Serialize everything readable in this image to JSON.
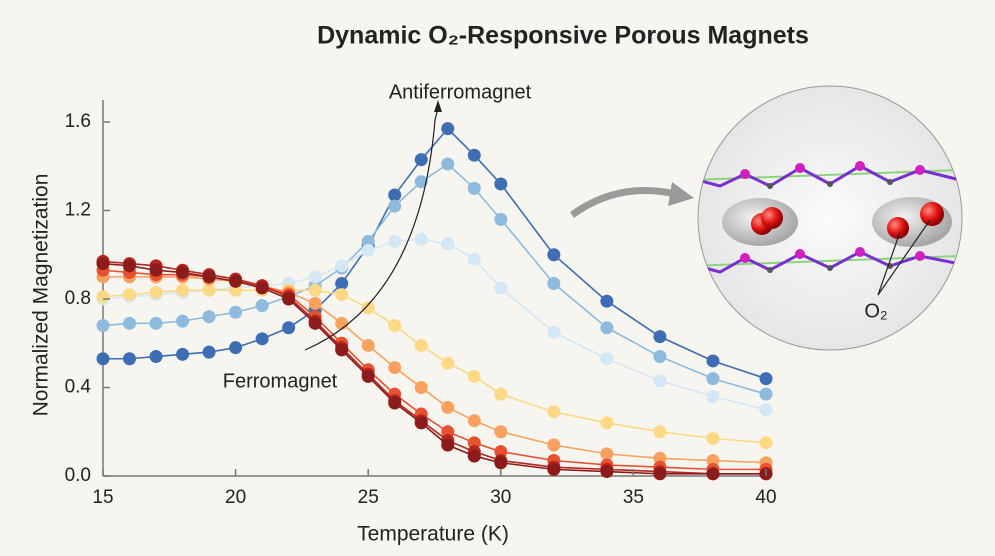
{
  "chart_data": {
    "type": "line",
    "title": "Dynamic O₂-Responsive Porous Magnets",
    "x_label": "Temperature (K)",
    "y_label": "Normalized Magnetization",
    "annotations": [
      "Antiferromagnet",
      "Ferromagnet"
    ],
    "inset_label": "O₂",
    "x": [
      15,
      16,
      17,
      18,
      19,
      20,
      21,
      22,
      23,
      24,
      25,
      26,
      27,
      28,
      29,
      30,
      32,
      34,
      36,
      38,
      40
    ],
    "series": [
      {
        "color": "#3e6db3",
        "values": [
          0.53,
          0.53,
          0.54,
          0.55,
          0.56,
          0.58,
          0.62,
          0.67,
          0.75,
          0.87,
          1.04,
          1.27,
          1.43,
          1.57,
          1.45,
          1.32,
          1.0,
          0.79,
          0.63,
          0.52,
          0.44
        ]
      },
      {
        "color": "#8dbadd",
        "values": [
          0.68,
          0.69,
          0.69,
          0.7,
          0.72,
          0.74,
          0.77,
          0.81,
          0.86,
          0.94,
          1.06,
          1.22,
          1.33,
          1.41,
          1.3,
          1.16,
          0.87,
          0.67,
          0.54,
          0.44,
          0.37
        ]
      },
      {
        "color": "#d4e7f4",
        "values": [
          0.8,
          0.81,
          0.82,
          0.83,
          0.84,
          0.85,
          0.86,
          0.87,
          0.9,
          0.95,
          1.02,
          1.06,
          1.07,
          1.05,
          0.98,
          0.85,
          0.65,
          0.53,
          0.43,
          0.36,
          0.3
        ]
      },
      {
        "color": "#fdd985",
        "values": [
          0.81,
          0.82,
          0.83,
          0.84,
          0.84,
          0.84,
          0.84,
          0.84,
          0.84,
          0.82,
          0.76,
          0.68,
          0.59,
          0.51,
          0.45,
          0.37,
          0.29,
          0.24,
          0.2,
          0.17,
          0.15
        ]
      },
      {
        "color": "#f9a15f",
        "values": [
          0.9,
          0.9,
          0.9,
          0.9,
          0.89,
          0.88,
          0.86,
          0.83,
          0.78,
          0.69,
          0.59,
          0.49,
          0.4,
          0.31,
          0.25,
          0.2,
          0.14,
          0.1,
          0.08,
          0.07,
          0.06
        ]
      },
      {
        "color": "#e8512f",
        "values": [
          0.93,
          0.92,
          0.91,
          0.91,
          0.9,
          0.88,
          0.86,
          0.82,
          0.72,
          0.6,
          0.48,
          0.37,
          0.28,
          0.2,
          0.15,
          0.11,
          0.07,
          0.05,
          0.04,
          0.03,
          0.03
        ]
      },
      {
        "color": "#b7251f",
        "values": [
          0.97,
          0.96,
          0.95,
          0.93,
          0.91,
          0.89,
          0.86,
          0.81,
          0.7,
          0.58,
          0.46,
          0.34,
          0.25,
          0.16,
          0.11,
          0.07,
          0.04,
          0.03,
          0.02,
          0.01,
          0.01
        ]
      },
      {
        "color": "#8c1b1b",
        "values": [
          0.96,
          0.95,
          0.93,
          0.92,
          0.9,
          0.88,
          0.85,
          0.8,
          0.69,
          0.57,
          0.45,
          0.33,
          0.24,
          0.14,
          0.09,
          0.06,
          0.03,
          0.02,
          0.01,
          0.01,
          0.01
        ]
      }
    ],
    "xlim": [
      15,
      40
    ],
    "xticks": [
      15,
      20,
      25,
      30,
      35,
      40
    ],
    "ylim": [
      0,
      1.6
    ],
    "yticks": [
      {
        "value": 0,
        "label": "0.0"
      },
      0.4,
      0.8,
      1.2,
      1.6
    ],
    "grid": false
  }
}
